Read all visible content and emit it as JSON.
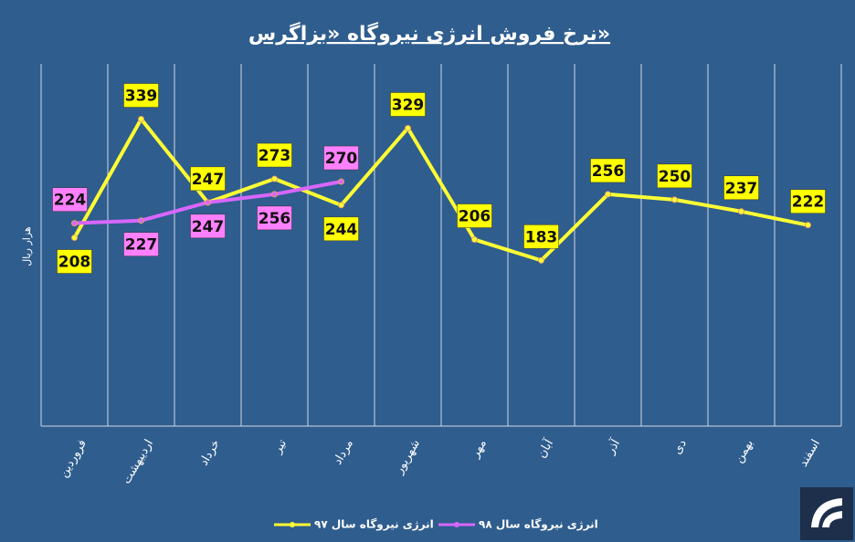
{
  "chart_data": {
    "type": "line",
    "title": "نرخ فروش انرژی نیروگاه «بزاگرس»",
    "y_label": "هزار ریال",
    "categories": [
      "فروردین",
      "اردیبهشت",
      "خرداد",
      "تیر",
      "مرداد",
      "شهریور",
      "مهر",
      "آبان",
      "آذر",
      "دی",
      "بهمن",
      "اسفند"
    ],
    "series": [
      {
        "name": "انرژی نیروگاه سال ۹۷",
        "color": "#ffff33",
        "label_color": "#ffff00",
        "values": [
          208,
          339,
          247,
          273,
          244,
          329,
          206,
          183,
          256,
          250,
          237,
          222
        ]
      },
      {
        "name": "انرژی نیروگاه سال ۹۸",
        "color": "#d966ff",
        "label_color": "#ff80ff",
        "values": [
          224,
          227,
          247,
          256,
          270,
          null,
          null,
          null,
          null,
          null,
          null,
          null
        ]
      }
    ],
    "ylim": [
      0,
      400
    ],
    "legend": "bottom"
  }
}
